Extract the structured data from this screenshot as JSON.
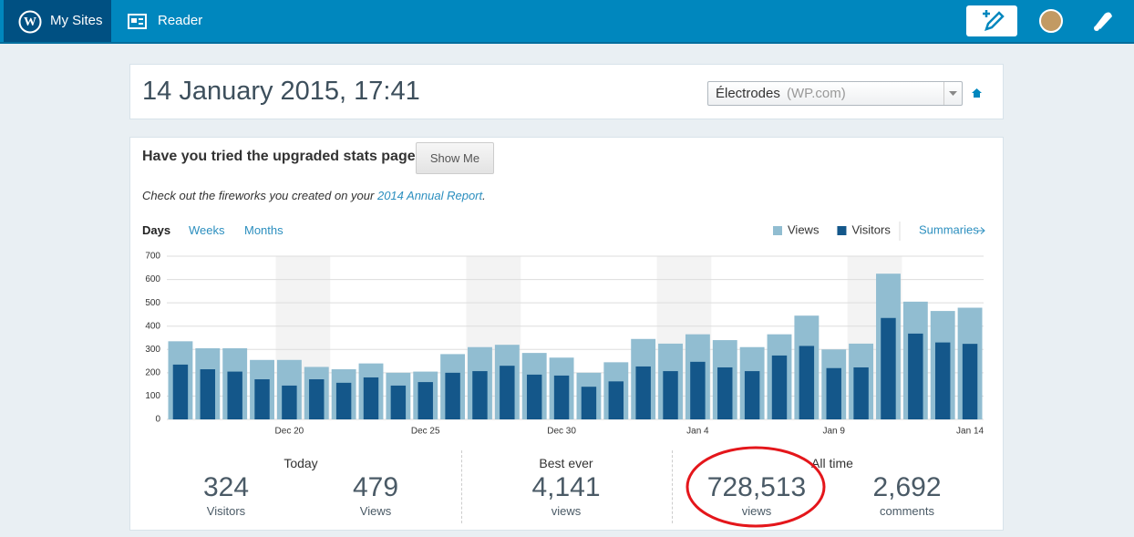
{
  "header": {
    "my_sites": "My Sites",
    "reader": "Reader"
  },
  "title": "14 January 2015, 17:41",
  "site_select": {
    "name": "Électrodes",
    "suffix": "(WP.com)"
  },
  "banner": {
    "question": "Have you tried the upgraded stats page?",
    "button": "Show Me",
    "note_prefix": "Check out the fireworks you created on your ",
    "note_link": "2014 Annual Report",
    "note_suffix": "."
  },
  "tabs": [
    "Days",
    "Weeks",
    "Months"
  ],
  "summaries": "Summaries",
  "chart_data": {
    "type": "bar",
    "categories": [
      null,
      null,
      null,
      null,
      "Dec 20",
      null,
      null,
      null,
      null,
      "Dec 25",
      null,
      null,
      null,
      null,
      "Dec 30",
      null,
      null,
      null,
      null,
      "Jan 4",
      null,
      null,
      null,
      null,
      "Jan 9",
      null,
      null,
      null,
      null,
      "Jan 14"
    ],
    "series": [
      {
        "name": "Views",
        "color": "#91bdd1",
        "values": [
          335,
          305,
          305,
          255,
          255,
          225,
          215,
          240,
          200,
          205,
          280,
          310,
          320,
          285,
          265,
          200,
          245,
          345,
          325,
          365,
          340,
          310,
          365,
          445,
          300,
          325,
          625,
          505,
          465,
          479
        ]
      },
      {
        "name": "Visitors",
        "color": "#14578a",
        "values": [
          235,
          215,
          205,
          172,
          145,
          172,
          157,
          180,
          145,
          160,
          200,
          207,
          230,
          192,
          188,
          140,
          163,
          227,
          207,
          247,
          223,
          207,
          274,
          315,
          220,
          223,
          435,
          368,
          330,
          324
        ]
      }
    ],
    "ylim": [
      0,
      700
    ],
    "yticks": [
      0,
      100,
      200,
      300,
      400,
      500,
      600,
      700
    ],
    "grid": true,
    "legend": "top-right"
  },
  "stats": [
    {
      "heading": "Today",
      "items": [
        {
          "value": "324",
          "label": "Visitors"
        },
        {
          "value": "479",
          "label": "Views"
        }
      ]
    },
    {
      "heading": "Best ever",
      "items": [
        {
          "value": "4,141",
          "label": "views"
        }
      ]
    },
    {
      "heading": "All time",
      "items": [
        {
          "value": "728,513",
          "label": "views"
        },
        {
          "value": "2,692",
          "label": "comments"
        }
      ]
    }
  ]
}
